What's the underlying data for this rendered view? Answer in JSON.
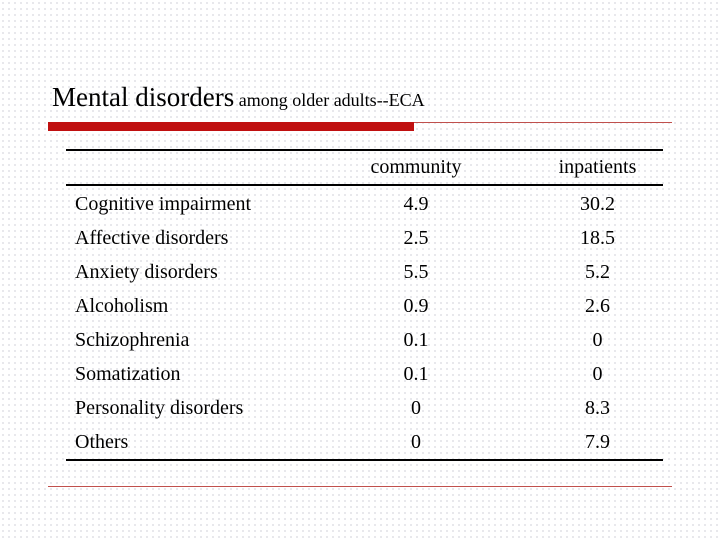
{
  "title": {
    "main": "Mental disorders",
    "sub": " among older adults--ECA"
  },
  "table": {
    "columns": [
      "",
      "community",
      "inpatients"
    ],
    "rows": [
      {
        "label": "Cognitive impairment",
        "community": "4.9",
        "inpatients": "30.2"
      },
      {
        "label": "Affective disorders",
        "community": "2.5",
        "inpatients": "18.5"
      },
      {
        "label": "Anxiety disorders",
        "community": "5.5",
        "inpatients": "5.2"
      },
      {
        "label": "Alcoholism",
        "community": "0.9",
        "inpatients": "2.6"
      },
      {
        "label": "Schizophrenia",
        "community": "0.1",
        "inpatients": "0"
      },
      {
        "label": "Somatization",
        "community": "0.1",
        "inpatients": "0"
      },
      {
        "label": "Personality disorders",
        "community": "0",
        "inpatients": "8.3"
      },
      {
        "label": "Others",
        "community": "0",
        "inpatients": "7.9"
      }
    ]
  },
  "colors": {
    "accent": "#c01010",
    "rule": "#c0504d"
  }
}
